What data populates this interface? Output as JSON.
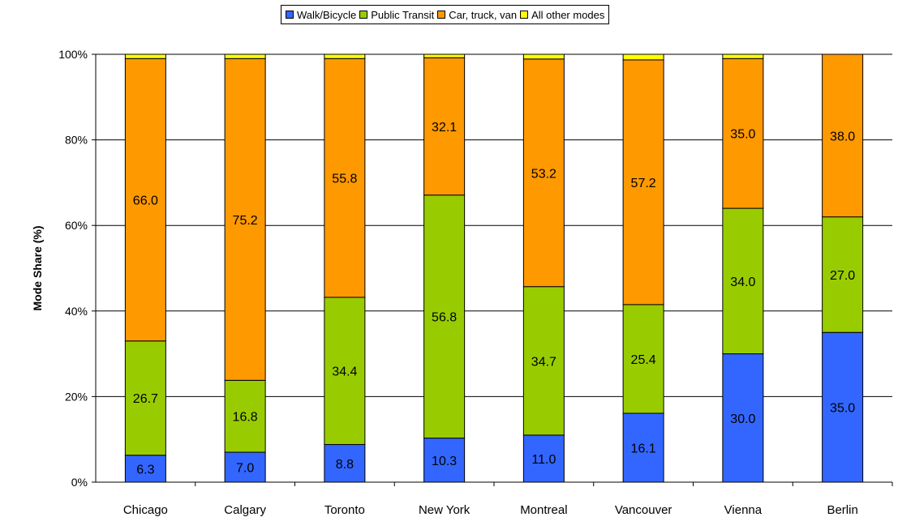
{
  "chart_data": {
    "type": "bar",
    "stacked": true,
    "title": "",
    "xlabel": "",
    "ylabel": "Mode Share (%)",
    "ylim": [
      0,
      100
    ],
    "y_ticks": [
      "0%",
      "20%",
      "40%",
      "60%",
      "80%",
      "100%"
    ],
    "grid": true,
    "legend_position": "top",
    "categories": [
      "Chicago",
      "Calgary",
      "Toronto",
      "New York",
      "Montreal",
      "Vancouver",
      "Vienna",
      "Berlin"
    ],
    "series": [
      {
        "name": "Walk/Bicycle",
        "color": "#3366ff",
        "values": [
          6.3,
          7.0,
          8.8,
          10.3,
          11.0,
          16.1,
          30.0,
          35.0
        ],
        "labels": [
          "6.3",
          "7.0",
          "8.8",
          "10.3",
          "11.0",
          "16.1",
          "30.0",
          "35.0"
        ]
      },
      {
        "name": "Public Transit",
        "color": "#99cc00",
        "values": [
          26.7,
          16.8,
          34.4,
          56.8,
          34.7,
          25.4,
          34.0,
          27.0
        ],
        "labels": [
          "26.7",
          "16.8",
          "34.4",
          "56.8",
          "34.7",
          "25.4",
          "34.0",
          "27.0"
        ]
      },
      {
        "name": "Car, truck, van",
        "color": "#ff9900",
        "values": [
          66.0,
          75.2,
          55.8,
          32.1,
          53.2,
          57.2,
          35.0,
          38.0
        ],
        "labels": [
          "66.0",
          "75.2",
          "55.8",
          "32.1",
          "53.2",
          "57.2",
          "35.0",
          "38.0"
        ]
      },
      {
        "name": "All other modes",
        "color": "#ffff00",
        "values": [
          1.0,
          1.0,
          1.0,
          0.8,
          1.1,
          1.3,
          1.0,
          0.0
        ],
        "labels": []
      }
    ]
  }
}
